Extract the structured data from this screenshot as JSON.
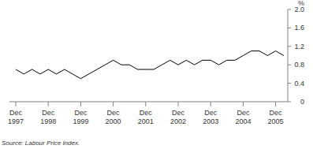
{
  "chart_data": {
    "type": "line",
    "y_label": "%",
    "source": "Source: Labour Price Index.",
    "categories": [
      "Dec 1997",
      null,
      null,
      null,
      "Dec 1998",
      null,
      null,
      null,
      "Dec 1999",
      null,
      null,
      null,
      "Dec 2000",
      null,
      null,
      null,
      "Dec 2001",
      null,
      null,
      null,
      "Dec 2002",
      null,
      null,
      null,
      "Dec 2003",
      null,
      null,
      null,
      "Dec 2004",
      null,
      null,
      null,
      "Dec 2005",
      null
    ],
    "values": [
      0.7,
      0.6,
      0.7,
      0.6,
      0.7,
      0.6,
      0.7,
      0.6,
      0.5,
      0.6,
      0.7,
      0.8,
      0.9,
      0.8,
      0.8,
      0.7,
      0.7,
      0.7,
      0.8,
      0.9,
      0.8,
      0.9,
      0.8,
      0.9,
      0.9,
      0.8,
      0.9,
      0.9,
      1.0,
      1.1,
      1.1,
      1.0,
      1.1,
      1.0
    ],
    "color": "#000000",
    "ylim": [
      0,
      2
    ],
    "yticks": [
      0,
      0.4,
      0.8,
      1.2,
      1.6,
      {
        "value": 2,
        "label": "2.0"
      }
    ],
    "grid": false
  }
}
